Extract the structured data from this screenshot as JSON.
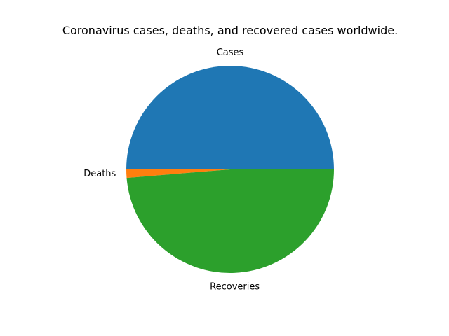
{
  "chart_data": {
    "type": "pie",
    "title": "Coronavirus cases, deaths, and recovered cases worldwide.",
    "labels": [
      "Cases",
      "Deaths",
      "Recoveries"
    ],
    "values": [
      50.0,
      1.3,
      48.7
    ],
    "colors": [
      "#1f77b4",
      "#ff7f0e",
      "#2ca02c"
    ],
    "start_angle_deg": 0,
    "direction": "counterclockwise",
    "legend": "none"
  }
}
